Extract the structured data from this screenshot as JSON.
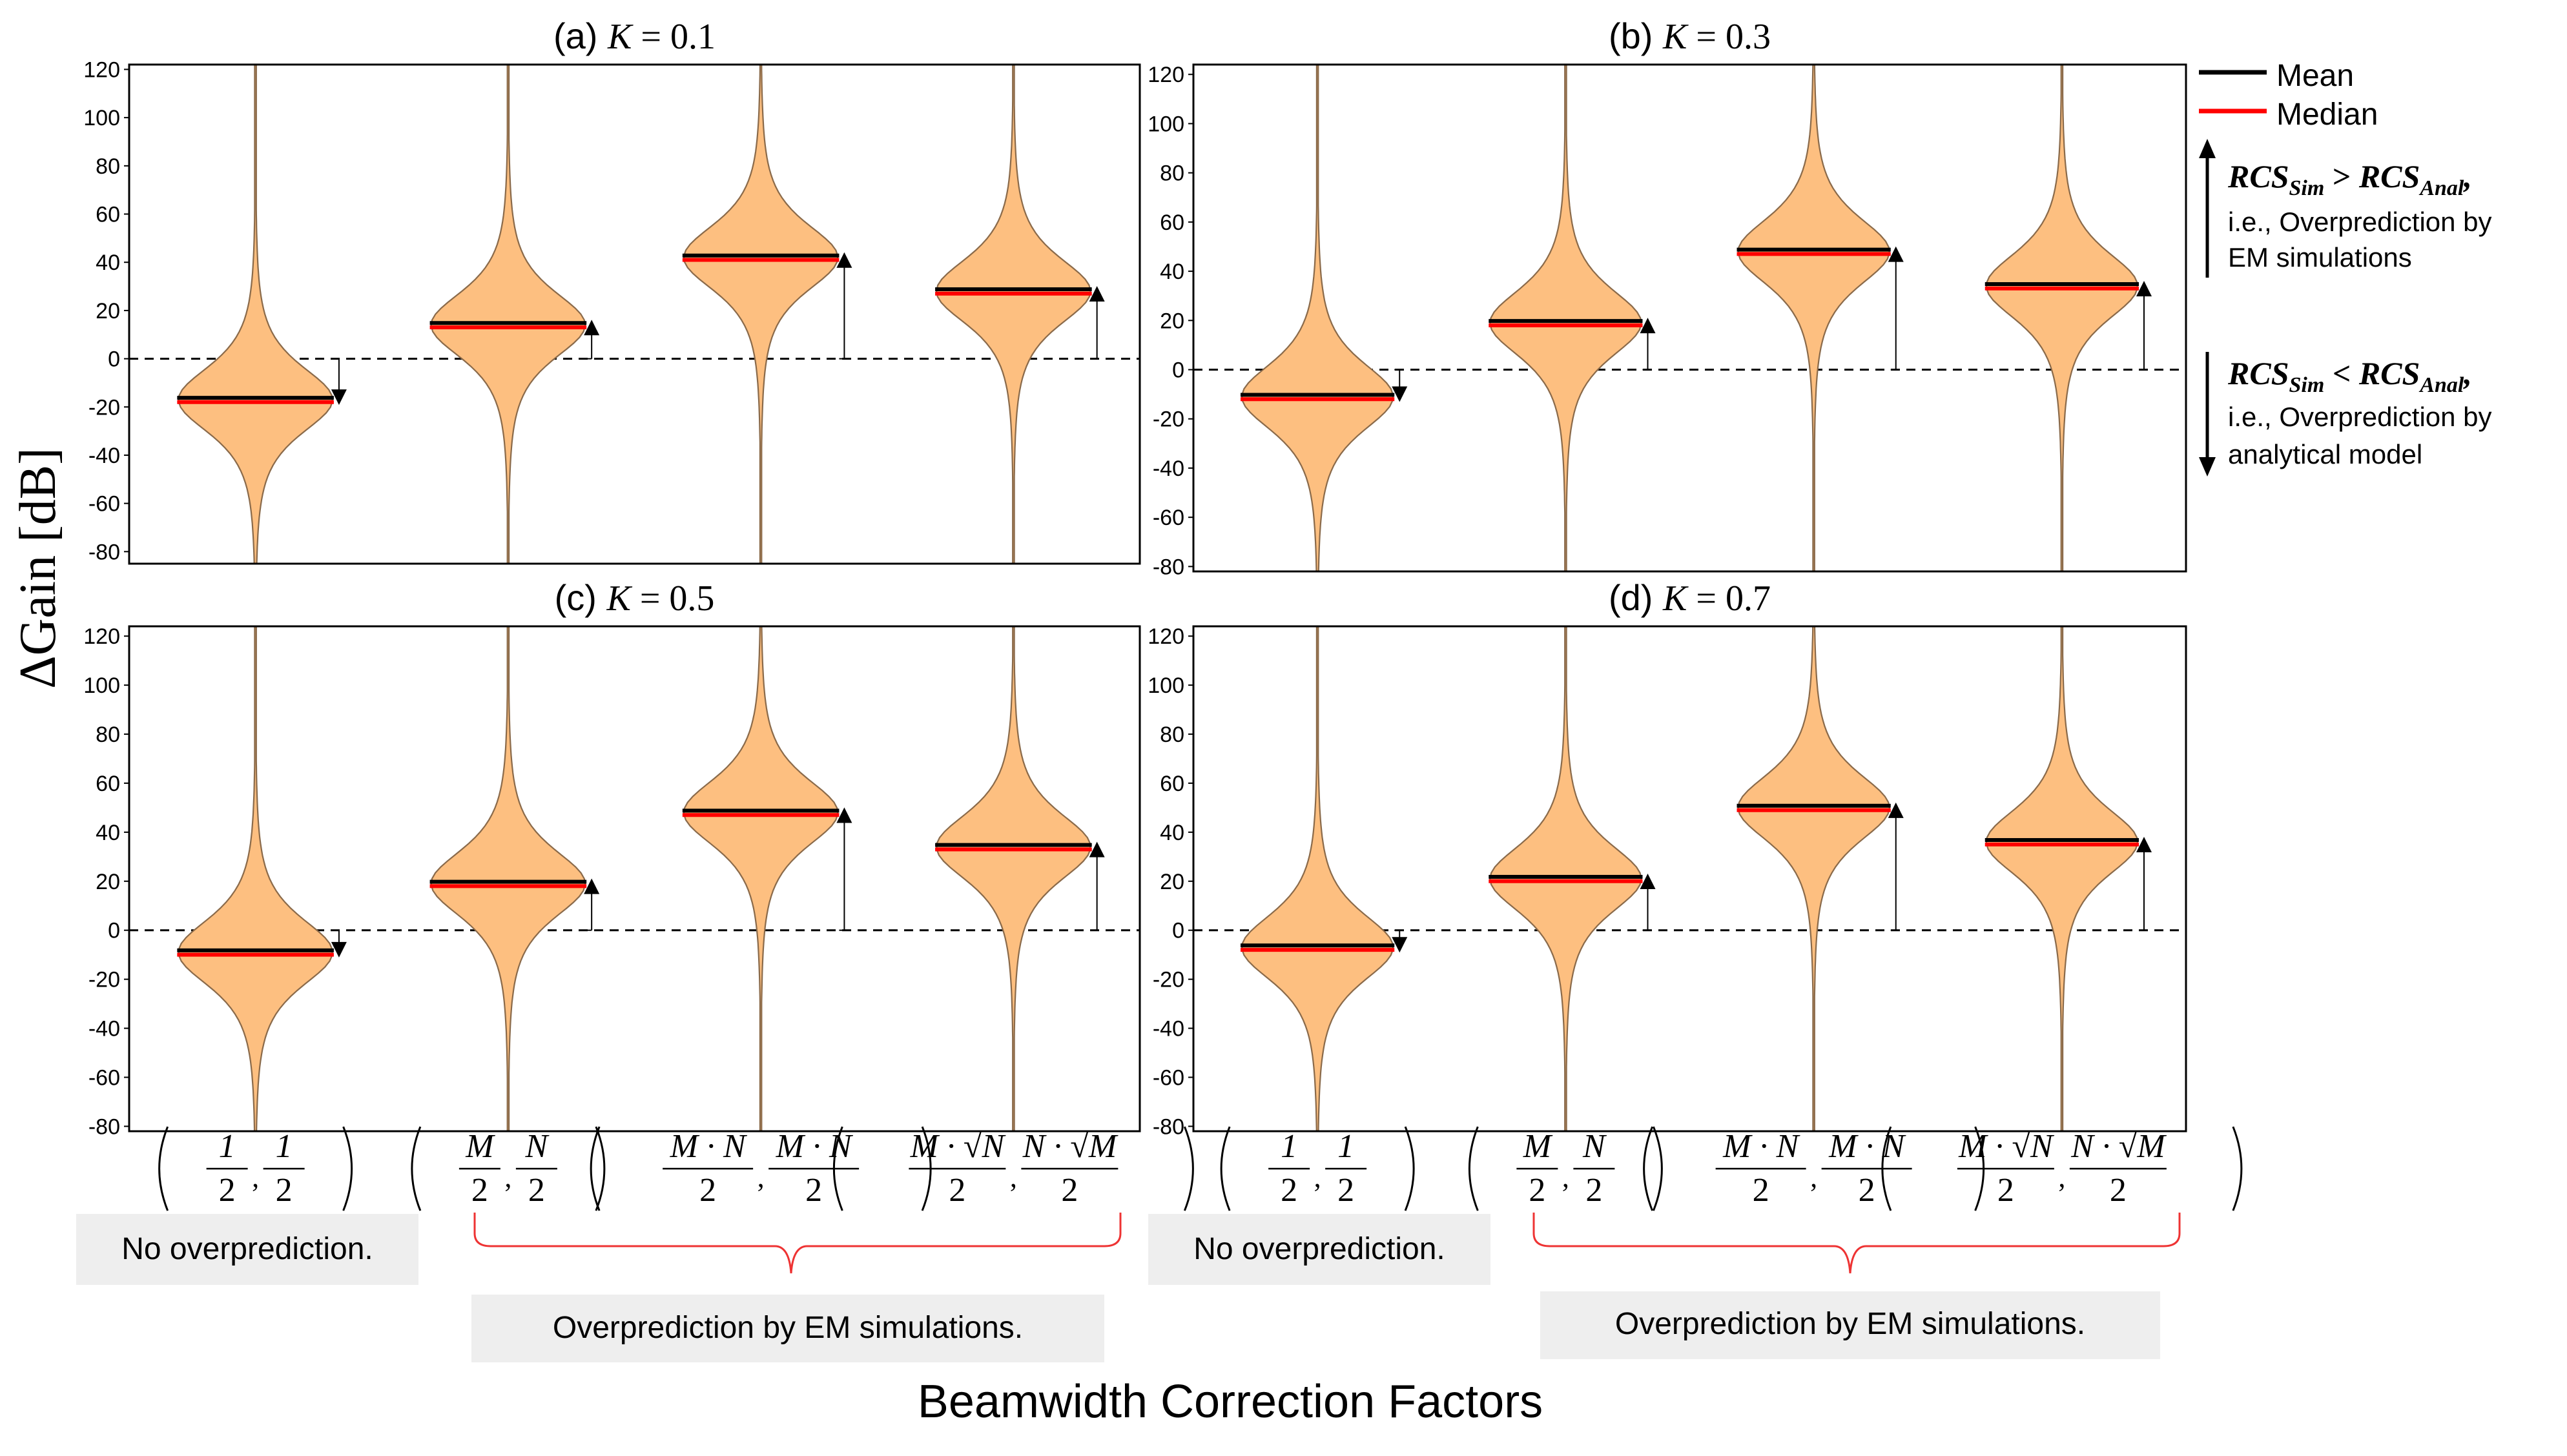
{
  "chart_data": [
    {
      "type": "violin",
      "title": "(a) K = 0.1",
      "title_prefix": "(a) ",
      "title_var": "K",
      "title_eq": " = 0.1",
      "ylim": [
        -85,
        122
      ],
      "yticks": [
        120,
        100,
        80,
        60,
        40,
        20,
        0,
        -20,
        -40,
        -60,
        -80
      ],
      "categories": [
        "(1/2, 1/2)",
        "(M/2, N/2)",
        "(M·N/2, M·N/2)",
        "(M·√N/2, N·√M/2)"
      ],
      "mean": [
        -17,
        14,
        42,
        28
      ],
      "median": [
        -18,
        13,
        41,
        27
      ],
      "direction": [
        "down",
        "up",
        "up",
        "up"
      ]
    },
    {
      "type": "violin",
      "title": "(b) K = 0.3",
      "title_prefix": "(b) ",
      "title_var": "K",
      "title_eq": " = 0.3",
      "ylim": [
        -82,
        124
      ],
      "yticks": [
        120,
        100,
        80,
        60,
        40,
        20,
        0,
        -20,
        -40,
        -60,
        -80
      ],
      "categories": [
        "(1/2, 1/2)",
        "(M/2, N/2)",
        "(M·N/2, M·N/2)",
        "(M·√N/2, N·√M/2)"
      ],
      "mean": [
        -11,
        19,
        48,
        34
      ],
      "median": [
        -12,
        18,
        47,
        33
      ],
      "direction": [
        "down",
        "up",
        "up",
        "up"
      ]
    },
    {
      "type": "violin",
      "title": "(c) K = 0.5",
      "title_prefix": "(c) ",
      "title_var": "K",
      "title_eq": " = 0.5",
      "ylim": [
        -82,
        124
      ],
      "yticks": [
        120,
        100,
        80,
        60,
        40,
        20,
        0,
        -20,
        -40,
        -60,
        -80
      ],
      "categories": [
        "(1/2, 1/2)",
        "(M/2, N/2)",
        "(M·N/2, M·N/2)",
        "(M·√N/2, N·√M/2)"
      ],
      "mean": [
        -9,
        19,
        48,
        34
      ],
      "median": [
        -10,
        18,
        47,
        33
      ],
      "direction": [
        "down",
        "up",
        "up",
        "up"
      ]
    },
    {
      "type": "violin",
      "title": "(d) K = 0.7",
      "title_prefix": "(d) ",
      "title_var": "K",
      "title_eq": " = 0.7",
      "ylim": [
        -82,
        124
      ],
      "yticks": [
        120,
        100,
        80,
        60,
        40,
        20,
        0,
        -20,
        -40,
        -60,
        -80
      ],
      "categories": [
        "(1/2, 1/2)",
        "(M/2, N/2)",
        "(M·N/2, M·N/2)",
        "(M·√N/2, N·√M/2)"
      ],
      "mean": [
        -7,
        21,
        50,
        36
      ],
      "median": [
        -8,
        20,
        49,
        35
      ],
      "direction": [
        "down",
        "up",
        "up",
        "up"
      ]
    }
  ],
  "ylabel": "ΔGain [dB]",
  "xlabel": "Beamwidth Correction Factors",
  "legend": {
    "placement": "right",
    "mean_label": "Mean",
    "median_label": "Median",
    "mean_color": "#000000",
    "median_color": "#ff0000"
  },
  "annotations": {
    "up_expr": "RCS_Sim > RCS_Anal,",
    "up_line1": "i.e., Overprediction by",
    "up_line2": "EM simulations",
    "down_expr": "RCS_Sim < RCS_Anal,",
    "down_line1": "i.e., Overprediction by",
    "down_line2": "analytical model",
    "rcs_main": "RCS",
    "sub_sim": "Sim",
    "sub_anal": "Anal",
    "gt": " > ",
    "lt": " < ",
    "comma": ","
  },
  "notes": {
    "no_overprediction": "No overprediction.",
    "overprediction_em": "Overprediction by EM simulations."
  },
  "factor_labels": {
    "f1_num1": "1",
    "f1_den1": "2",
    "f1_num2": "1",
    "f1_den2": "2",
    "f2_num1": "M",
    "f2_den1": "2",
    "f2_num2": "N",
    "f2_den2": "2",
    "f3_num1": "M · N",
    "f3_den1": "2",
    "f3_num2": "M · N",
    "f3_den2": "2",
    "f4_num1": "M · √N",
    "f4_den1": "2",
    "f4_num2": "N · √M",
    "f4_den2": "2",
    "comma": ","
  },
  "colors": {
    "violin_fill": "#fdbf80",
    "violin_edge": "#8a6a4a",
    "zero_line": "#000000",
    "brace": "#ee3333",
    "note_bg": "#eeeeee"
  }
}
